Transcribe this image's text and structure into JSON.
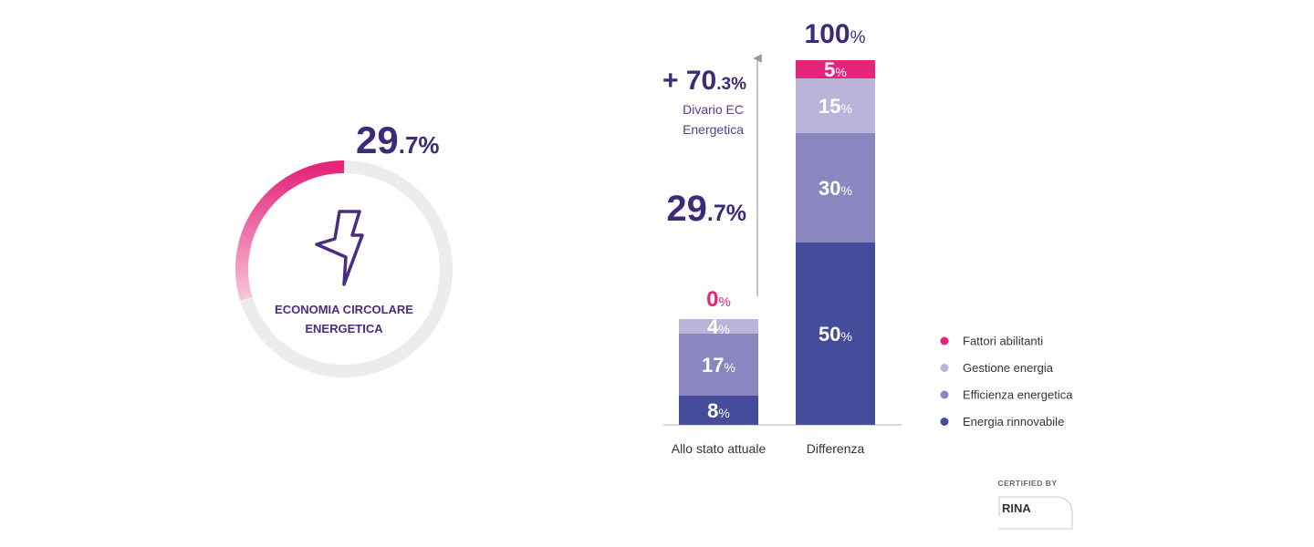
{
  "chart_data": [
    {
      "type": "gauge",
      "value": 29.7,
      "value_label": "29.7%",
      "label_lines": [
        "ECONOMIA CIRCOLARE",
        "ENERGETICA"
      ],
      "ylim": [
        0,
        100
      ],
      "color": "#e5247a",
      "track_color": "#ececec"
    },
    {
      "type": "stacked_bar",
      "categories": [
        "Allo stato attuale",
        "Differenza"
      ],
      "ylim": [
        0,
        100
      ],
      "series": [
        {
          "name": "Energia rinnovabile",
          "color": "#454c9b",
          "values": [
            8,
            50
          ],
          "value_labels": [
            "8%",
            "50%"
          ]
        },
        {
          "name": "Efficienza energetica",
          "color": "#8b86c0",
          "values": [
            17,
            30
          ],
          "value_labels": [
            "17%",
            "30%"
          ]
        },
        {
          "name": "Gestione energia",
          "color": "#bab3da",
          "values": [
            4,
            15
          ],
          "value_labels": [
            "4%",
            "15%"
          ]
        },
        {
          "name": "Fattori abilitanti",
          "color": "#e5247a",
          "values": [
            0,
            5
          ],
          "value_labels": [
            "0%",
            "5%"
          ]
        }
      ],
      "totals": [
        29.7,
        100
      ],
      "total_labels": [
        "29.7%",
        "100%"
      ],
      "gap": 70.3,
      "gap_label": "+ 70.3%",
      "gap_text": [
        "Divario EC",
        "Energetica"
      ]
    }
  ],
  "certification": {
    "label": "CERTIFIED BY",
    "logo": "RINA"
  }
}
